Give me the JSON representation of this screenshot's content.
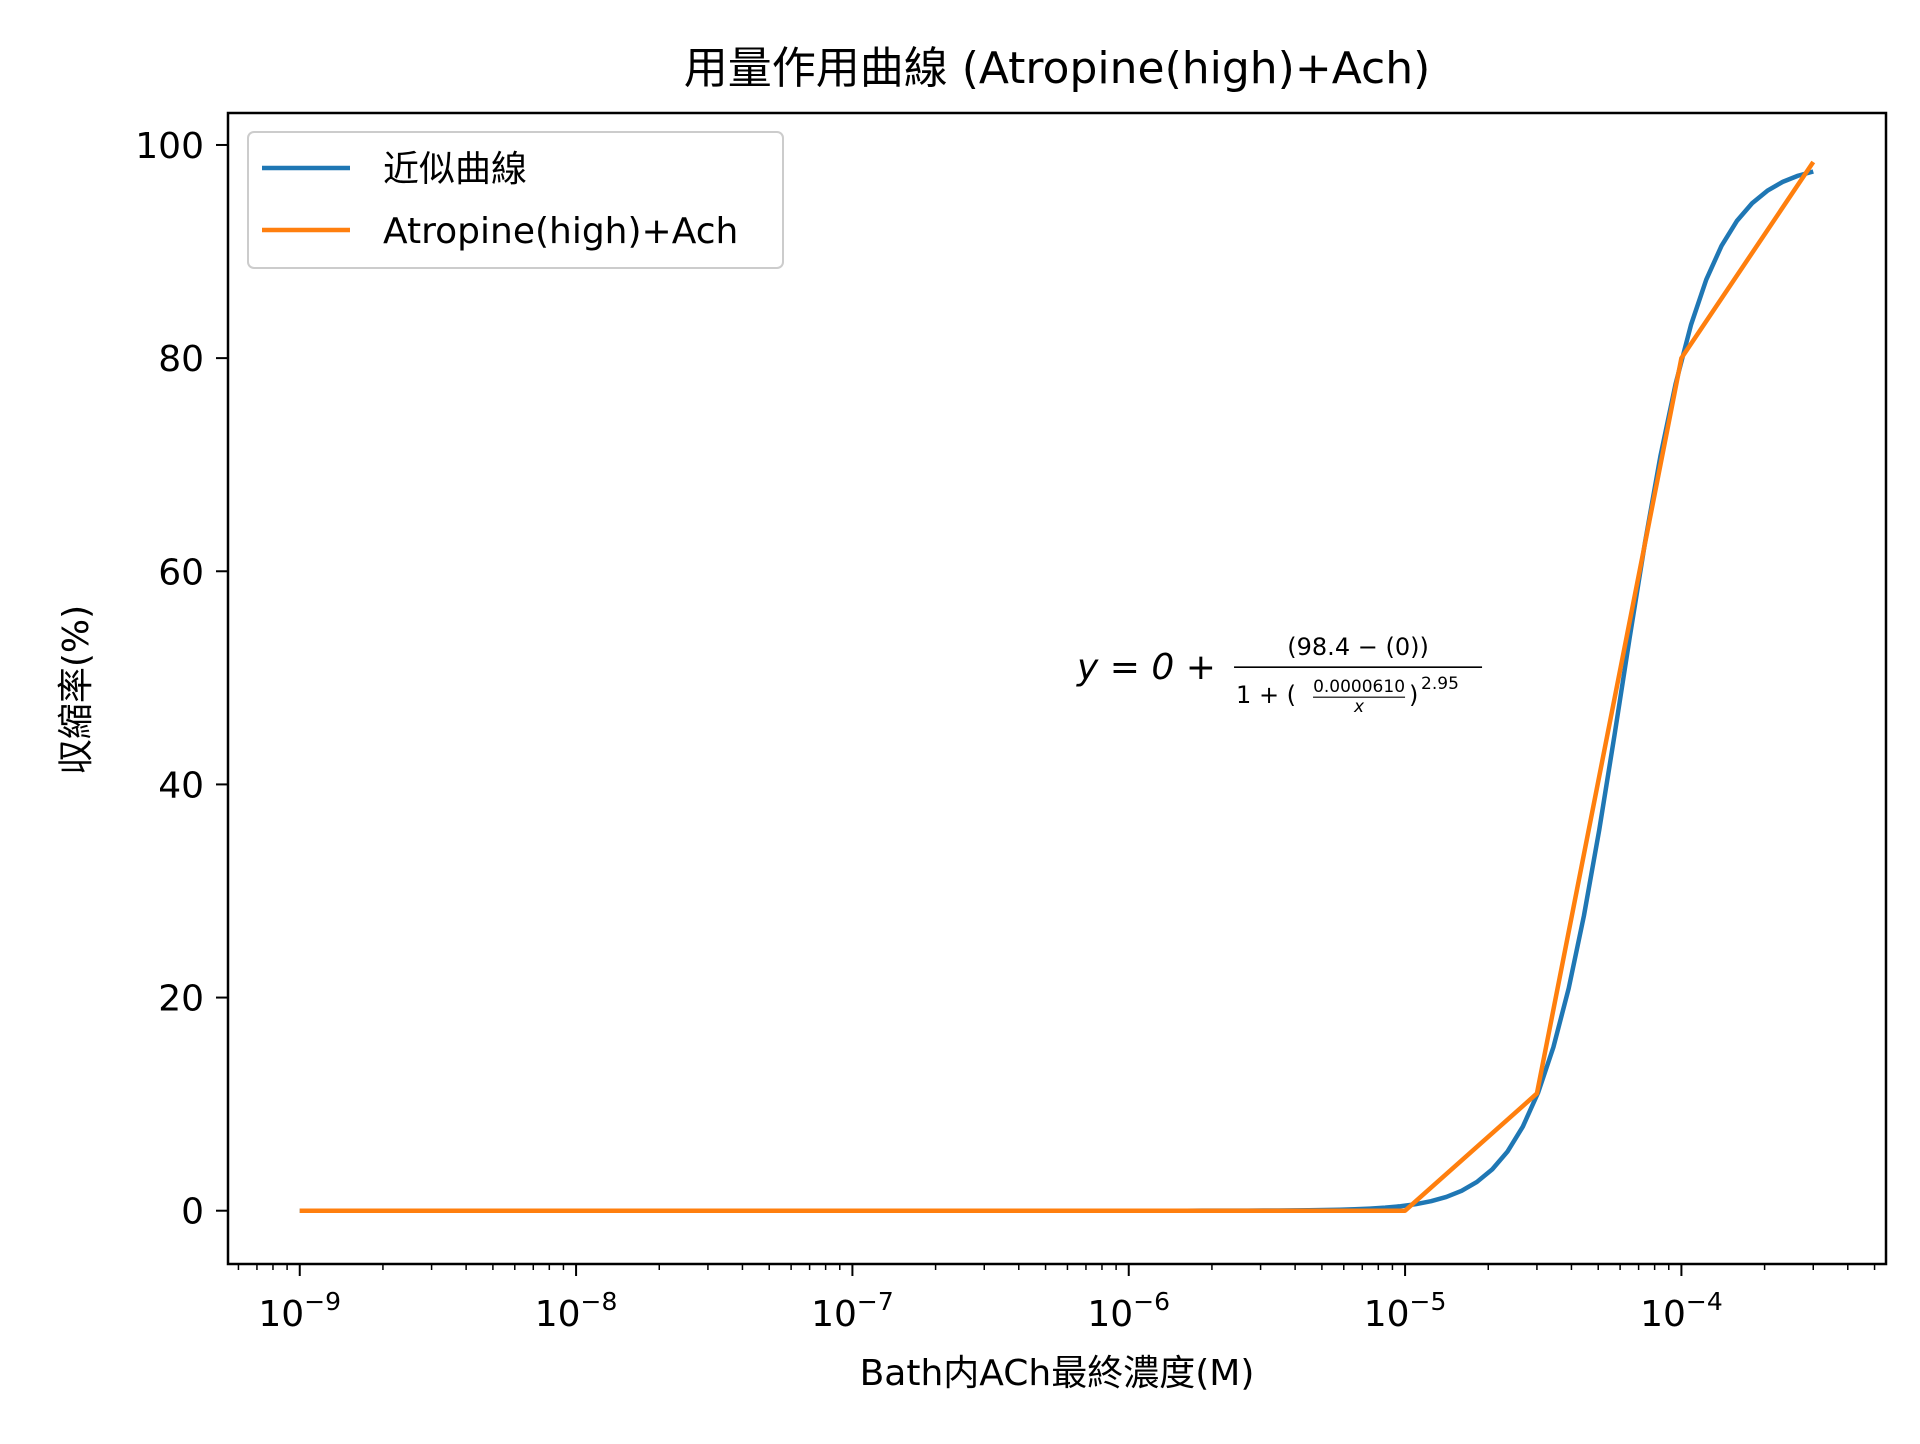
{
  "chart_data": {
    "type": "line",
    "title": "用量作用曲線 (Atropine(high)+Ach)",
    "xlabel": "Bath内ACh最終濃度(M)",
    "ylabel": "収縮率(%)",
    "x_scale": "log",
    "xlim": [
      5.5e-10,
      0.00055
    ],
    "ylim": [
      -5,
      103
    ],
    "x_ticks": [
      {
        "value": 1e-09,
        "base": "10",
        "exp": "−9"
      },
      {
        "value": 1e-08,
        "base": "10",
        "exp": "−8"
      },
      {
        "value": 1e-07,
        "base": "10",
        "exp": "−7"
      },
      {
        "value": 1e-06,
        "base": "10",
        "exp": "−6"
      },
      {
        "value": 1e-05,
        "base": "10",
        "exp": "−5"
      },
      {
        "value": 0.0001,
        "base": "10",
        "exp": "−4"
      }
    ],
    "y_ticks": [
      {
        "value": 0,
        "label": "0"
      },
      {
        "value": 20,
        "label": "20"
      },
      {
        "value": 40,
        "label": "40"
      },
      {
        "value": 60,
        "label": "60"
      },
      {
        "value": 80,
        "label": "80"
      },
      {
        "value": 100,
        "label": "100"
      }
    ],
    "grid": false,
    "legend_position": "top-left",
    "series": [
      {
        "name": "近似曲線",
        "color": "#1f77b4",
        "kind": "fit",
        "model": {
          "bottom": 0,
          "top": 98.4,
          "ec50": 6.1e-05,
          "hill": 2.95
        },
        "x_range": [
          1e-09,
          0.0003
        ],
        "samples": 100
      },
      {
        "name": "Atropine(high)+Ach",
        "color": "#ff7f0e",
        "kind": "data",
        "x": [
          1e-09,
          1e-05,
          3e-05,
          0.0001,
          0.0003
        ],
        "y": [
          0,
          0,
          11,
          80,
          98.4
        ]
      }
    ],
    "annotation": {
      "prefix": "y = 0 +",
      "numerator": "(98.4 − (0))",
      "denominator_left": "1 +",
      "inner_numerator": "0.0000610",
      "inner_denominator": "x",
      "exponent": "2.95",
      "anchor_x": 6.5e-07,
      "anchor_y": 51
    }
  }
}
